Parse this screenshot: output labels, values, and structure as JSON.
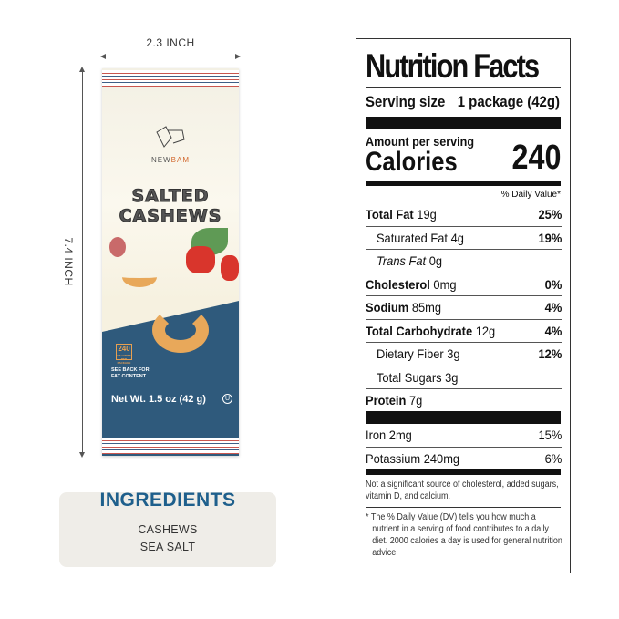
{
  "dimensions": {
    "width": "2.3 INCH",
    "height": "7.4 INCH"
  },
  "package": {
    "brand_a": "NEW",
    "brand_b": "BAM",
    "title_1": "SALTED",
    "title_2": "CASHEWS",
    "calories_badge": "240",
    "calories_badge_sub": "CALORIES PER PACKAGE",
    "see_back": "SEE BACK FOR FAT CONTENT",
    "net_wt": "Net Wt. 1.5 oz (42 g)",
    "kosher": "U"
  },
  "ingredients": {
    "title": "INGREDIENTS",
    "items": [
      "CASHEWS",
      "SEA SALT"
    ]
  },
  "nutrition": {
    "title": "Nutrition Facts",
    "serving_label": "Serving size",
    "serving_value": "1 package (42g)",
    "amount_per": "Amount per serving",
    "calories_label": "Calories",
    "calories_value": "240",
    "dv_header": "% Daily Value*",
    "rows": [
      {
        "name": "Total Fat",
        "amount": "19g",
        "dv": "25%",
        "bold": true,
        "indent": false
      },
      {
        "name": "Saturated Fat",
        "amount": "4g",
        "dv": "19%",
        "bold": false,
        "indent": true
      },
      {
        "name": "Trans Fat",
        "amount": "0g",
        "dv": "",
        "bold": false,
        "indent": true,
        "italic": true
      },
      {
        "name": "Cholesterol",
        "amount": "0mg",
        "dv": "0%",
        "bold": true,
        "indent": false
      },
      {
        "name": "Sodium",
        "amount": "85mg",
        "dv": "4%",
        "bold": true,
        "indent": false
      },
      {
        "name": "Total Carbohydrate",
        "amount": "12g",
        "dv": "4%",
        "bold": true,
        "indent": false
      },
      {
        "name": "Dietary Fiber",
        "amount": "3g",
        "dv": "12%",
        "bold": false,
        "indent": true
      },
      {
        "name": "Total Sugars",
        "amount": "3g",
        "dv": "",
        "bold": false,
        "indent": true
      },
      {
        "name": "Protein",
        "amount": "7g",
        "dv": "",
        "bold": true,
        "indent": false
      }
    ],
    "minerals": [
      {
        "name": "Iron",
        "amount": "2mg",
        "dv": "15%"
      },
      {
        "name": "Potassium",
        "amount": "240mg",
        "dv": "6%"
      }
    ],
    "note": "Not a significant source of cholesterol, added sugars, vitamin D, and calcium.",
    "footnote": "* The % Daily Value (DV) tells you how much a nutrient in a serving of food contributes to a daily diet. 2000 calories a day is used for general nutrition advice."
  }
}
